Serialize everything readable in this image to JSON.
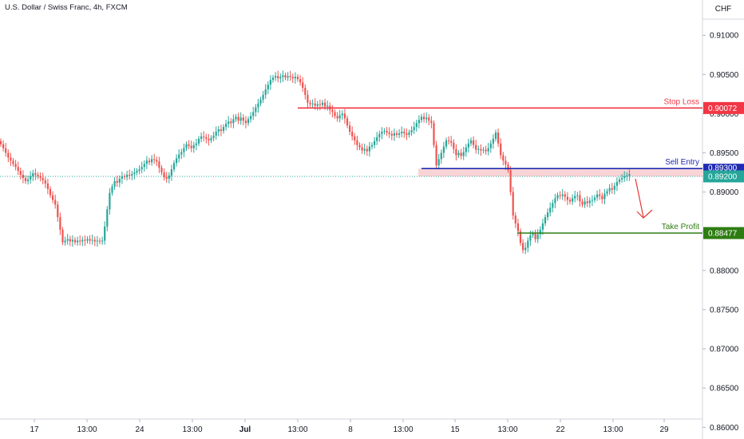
{
  "title": "U.S. Dollar / Swiss Franc, 4h, FXCM",
  "currency": "CHF",
  "colors": {
    "up": "#26a69a",
    "down": "#ef5350",
    "stop": "#f23645",
    "entry": "#1f2bb3",
    "current": "#26a69a",
    "profit": "#2e7d12",
    "zone": "#f7c5c9",
    "arrow": "#e53935"
  },
  "chart_data": {
    "type": "candlestick",
    "ylim": [
      0.8585,
      0.9145
    ],
    "y_ticks": [
      "0.91000",
      "0.90500",
      "0.90000",
      "0.89500",
      "0.89000",
      "0.88500",
      "0.88000",
      "0.87500",
      "0.87000",
      "0.86500",
      "0.86000"
    ],
    "x_ticks": [
      "17",
      "13:00",
      "24",
      "13:00",
      "Jul",
      "13:00",
      "8",
      "13:00",
      "15",
      "13:00",
      "22",
      "13:00",
      "29"
    ],
    "grid": false,
    "levels": [
      {
        "id": "stop",
        "label": "Stop Loss",
        "price_label": "0.90072",
        "value": 0.90072
      },
      {
        "id": "entry",
        "label": "Sell Entry",
        "price_label": "0.89300",
        "value": 0.893
      },
      {
        "id": "current",
        "label": "",
        "price_label": "0.89200",
        "value": 0.892
      },
      {
        "id": "profit",
        "label": "Take Profit",
        "price_label": "0.88477",
        "value": 0.88477
      }
    ],
    "zone": [
      0.892,
      0.893
    ],
    "close": [
      0.8961,
      0.8956,
      0.895,
      0.8944,
      0.894,
      0.8936,
      0.8932,
      0.8927,
      0.8922,
      0.8918,
      0.8914,
      0.8916,
      0.892,
      0.8924,
      0.8922,
      0.892,
      0.8918,
      0.8915,
      0.8911,
      0.8904,
      0.8896,
      0.889,
      0.8884,
      0.8868,
      0.8852,
      0.8836,
      0.8838,
      0.884,
      0.8837,
      0.8839,
      0.8836,
      0.8838,
      0.8837,
      0.8839,
      0.8838,
      0.884,
      0.8838,
      0.8839,
      0.8837,
      0.8838,
      0.8837,
      0.8838,
      0.8856,
      0.8878,
      0.8899,
      0.8907,
      0.8914,
      0.8912,
      0.8917,
      0.892,
      0.8919,
      0.8922,
      0.8921,
      0.8923,
      0.8925,
      0.8927,
      0.8929,
      0.8932,
      0.8936,
      0.894,
      0.8938,
      0.8942,
      0.8941,
      0.8939,
      0.8931,
      0.8925,
      0.8919,
      0.8917,
      0.8921,
      0.8929,
      0.8937,
      0.8943,
      0.8948,
      0.8951,
      0.8956,
      0.8961,
      0.8959,
      0.8956,
      0.896,
      0.8962,
      0.8968,
      0.8971,
      0.897,
      0.8968,
      0.8966,
      0.8969,
      0.8972,
      0.8977,
      0.898,
      0.8978,
      0.8983,
      0.8987,
      0.899,
      0.8988,
      0.8993,
      0.8996,
      0.8991,
      0.8995,
      0.8991,
      0.8988,
      0.8993,
      0.8997,
      0.9002,
      0.9008,
      0.9013,
      0.9018,
      0.9024,
      0.9031,
      0.9037,
      0.9043,
      0.9046,
      0.9048,
      0.9045,
      0.9047,
      0.9049,
      0.9046,
      0.9048,
      0.9047,
      0.9045,
      0.9047,
      0.9044,
      0.904,
      0.9033,
      0.9024,
      0.9014,
      0.9012,
      0.9013,
      0.901,
      0.9012,
      0.9011,
      0.9014,
      0.9009,
      0.901,
      0.9005,
      0.9002,
      0.8997,
      0.8994,
      0.8998,
      0.9,
      0.8994,
      0.8985,
      0.8977,
      0.8971,
      0.8966,
      0.896,
      0.8957,
      0.8953,
      0.8955,
      0.8952,
      0.8958,
      0.896,
      0.8965,
      0.897,
      0.8974,
      0.8977,
      0.8978,
      0.8976,
      0.8974,
      0.8972,
      0.8975,
      0.8973,
      0.8975,
      0.8977,
      0.8975,
      0.8973,
      0.8976,
      0.8979,
      0.8983,
      0.8988,
      0.8992,
      0.8996,
      0.8993,
      0.8995,
      0.8991,
      0.8988,
      0.896,
      0.8934,
      0.8942,
      0.895,
      0.8958,
      0.8966,
      0.8965,
      0.8963,
      0.8955,
      0.8947,
      0.895,
      0.8946,
      0.8951,
      0.8957,
      0.8962,
      0.8966,
      0.896,
      0.8954,
      0.8955,
      0.8953,
      0.8954,
      0.8952,
      0.8956,
      0.8962,
      0.8968,
      0.8976,
      0.8962,
      0.8947,
      0.894,
      0.8935,
      0.8928,
      0.89,
      0.887,
      0.886,
      0.885,
      0.8835,
      0.8826,
      0.8829,
      0.8838,
      0.8845,
      0.8847,
      0.884,
      0.8846,
      0.8852,
      0.886,
      0.8868,
      0.8874,
      0.888,
      0.8886,
      0.8892,
      0.8896,
      0.8895,
      0.8897,
      0.8894,
      0.889,
      0.8888,
      0.8892,
      0.8895,
      0.8896,
      0.8888,
      0.8884,
      0.8888,
      0.8886,
      0.8889,
      0.889,
      0.8893,
      0.8897,
      0.8895,
      0.8891,
      0.8898,
      0.8901,
      0.8905,
      0.8903,
      0.8908,
      0.8913,
      0.8916,
      0.8918,
      0.892,
      0.8921,
      0.8923
    ]
  }
}
